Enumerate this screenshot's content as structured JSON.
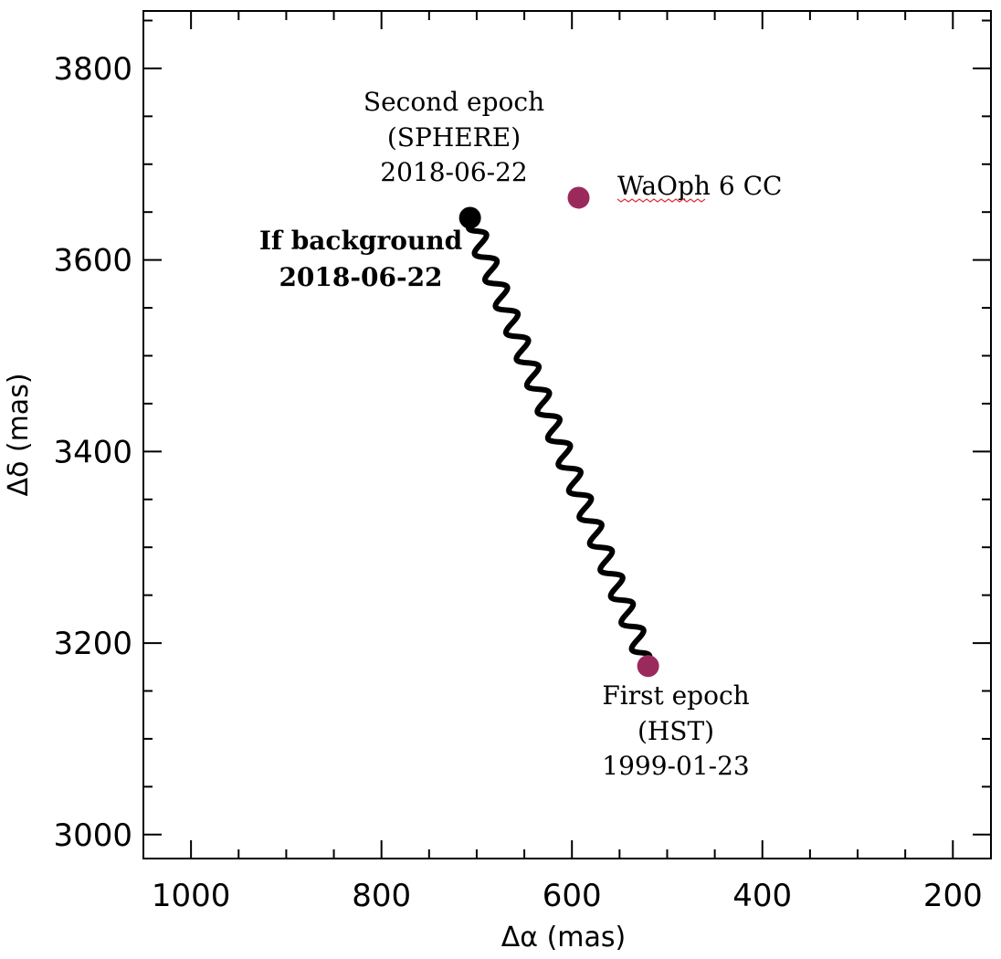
{
  "chart_data": {
    "type": "scatter",
    "xlabel": "Δα (mas)",
    "ylabel": "Δδ (mas)",
    "xlim": [
      1050,
      160
    ],
    "ylim": [
      2975,
      3860
    ],
    "x_reversed": true,
    "xticks": [
      1000,
      800,
      600,
      400,
      200
    ],
    "yticks": [
      3000,
      3200,
      3400,
      3600,
      3800
    ],
    "x_minor_step": 50,
    "y_minor_step": 50,
    "grid": false,
    "colors": {
      "companion": "#9b2a5c",
      "background": "#000000",
      "track": "#000000"
    },
    "points": [
      {
        "name": "WaOph 6 CC",
        "x": 593,
        "y": 3665,
        "label": "WaOph 6 CC",
        "color": "#9b2a5c"
      },
      {
        "name": "first-epoch",
        "x": 520,
        "y": 3176,
        "color": "#9b2a5c"
      },
      {
        "name": "background-position",
        "x": 707,
        "y": 3644,
        "color": "#000000"
      }
    ],
    "track": {
      "name": "background motion track",
      "start": {
        "x": 520,
        "y": 3176
      },
      "end": {
        "x": 707,
        "y": 3644
      },
      "oscillations": 17
    },
    "annotations": {
      "second_epoch": [
        "Second epoch",
        "(SPHERE)",
        "2018-06-22"
      ],
      "background": [
        "If background",
        "2018-06-22"
      ],
      "first_epoch": [
        "First epoch",
        "(HST)",
        "1999-01-23"
      ]
    }
  }
}
